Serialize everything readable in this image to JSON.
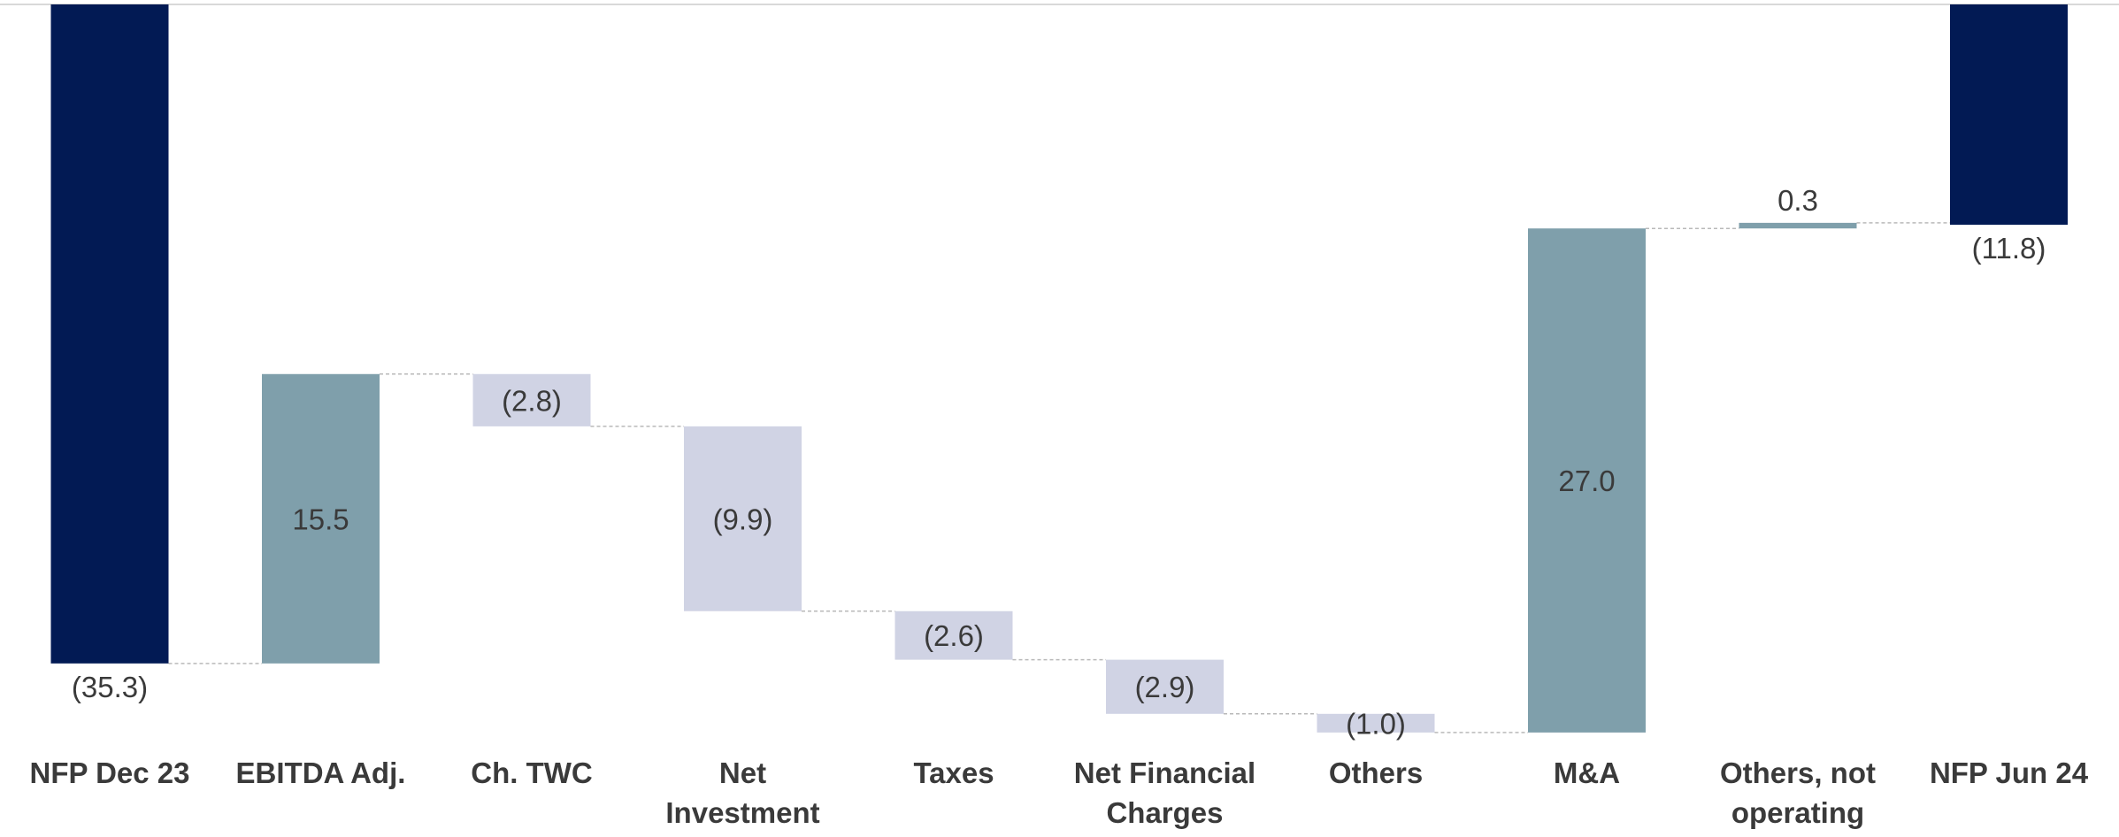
{
  "chart_data": {
    "type": "waterfall",
    "title": "",
    "xlabel": "",
    "ylabel": "",
    "ylim": [
      -38.5,
      0
    ],
    "grid": false,
    "legend": "none",
    "colors": {
      "total": "#021a54",
      "increase": "#7f9fab",
      "decrease": "#d0d3e4",
      "connector": "#b9b9b9",
      "text": "#3a3a3a"
    },
    "steps": [
      {
        "category": "NFP Dec 23",
        "lines": [
          "NFP Dec 23"
        ],
        "kind": "total",
        "value": -35.3,
        "label": "(35.3)"
      },
      {
        "category": "EBITDA Adj.",
        "lines": [
          "EBITDA Adj."
        ],
        "kind": "increase",
        "value": 15.5,
        "label": "15.5"
      },
      {
        "category": "Ch. TWC",
        "lines": [
          "Ch. TWC"
        ],
        "kind": "decrease",
        "value": -2.8,
        "label": "(2.8)"
      },
      {
        "category": "Net Investment",
        "lines": [
          "Net",
          "Investment"
        ],
        "kind": "decrease",
        "value": -9.9,
        "label": "(9.9)"
      },
      {
        "category": "Taxes",
        "lines": [
          "Taxes"
        ],
        "kind": "decrease",
        "value": -2.6,
        "label": "(2.6)"
      },
      {
        "category": "Net Financial Charges",
        "lines": [
          "Net Financial",
          "Charges"
        ],
        "kind": "decrease",
        "value": -2.9,
        "label": "(2.9)"
      },
      {
        "category": "Others",
        "lines": [
          "Others"
        ],
        "kind": "decrease",
        "value": -1.0,
        "label": "(1.0)"
      },
      {
        "category": "M&A",
        "lines": [
          "M&A"
        ],
        "kind": "increase",
        "value": 27.0,
        "label": "27.0"
      },
      {
        "category": "Others, not operating",
        "lines": [
          "Others, not",
          "operating"
        ],
        "kind": "increase",
        "value": 0.3,
        "label": "0.3"
      },
      {
        "category": "NFP Jun 24",
        "lines": [
          "NFP Jun 24"
        ],
        "kind": "total",
        "value": -11.8,
        "label": "(11.8)"
      }
    ]
  }
}
